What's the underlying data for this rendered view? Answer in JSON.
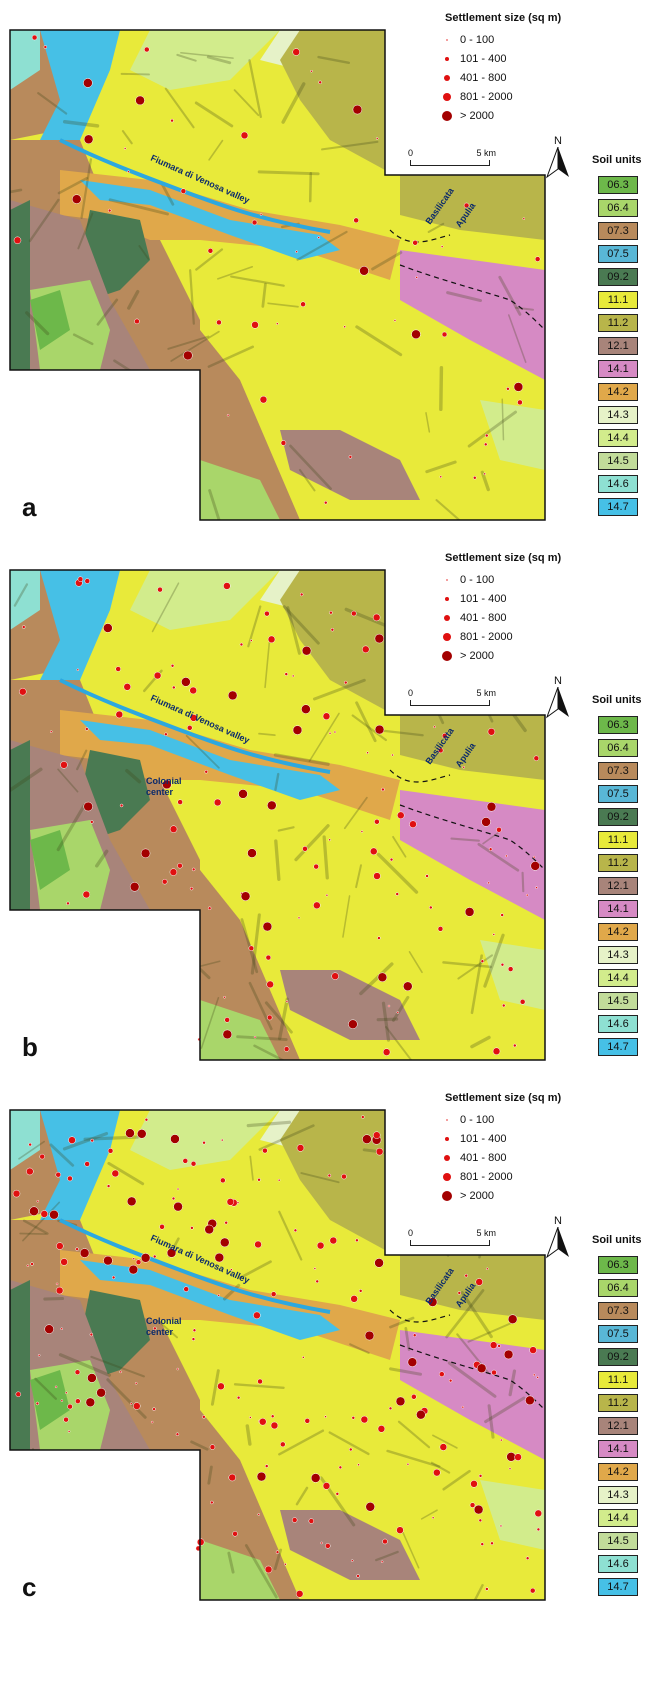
{
  "legend": {
    "title": "Settlement size (sq m)",
    "classes": [
      "0 - 100",
      "101 - 400",
      "401 - 800",
      "801 - 2000",
      "> 2000"
    ]
  },
  "scale": {
    "start": "0",
    "end": "5 km"
  },
  "north_label": "N",
  "soil_units": {
    "title": "Soil units",
    "units": [
      {
        "code": "06.3",
        "color": "#6db84a"
      },
      {
        "code": "06.4",
        "color": "#a9d66a"
      },
      {
        "code": "07.3",
        "color": "#b88a5c"
      },
      {
        "code": "07.5",
        "color": "#59b7d6"
      },
      {
        "code": "09.2",
        "color": "#4a7a52"
      },
      {
        "code": "11.1",
        "color": "#e8ea3a"
      },
      {
        "code": "11.2",
        "color": "#b8b54a"
      },
      {
        "code": "12.1",
        "color": "#a8847a"
      },
      {
        "code": "14.1",
        "color": "#d68ac4"
      },
      {
        "code": "14.2",
        "color": "#e0a84a"
      },
      {
        "code": "14.3",
        "color": "#e6f2c8"
      },
      {
        "code": "14.4",
        "color": "#d2ec8c"
      },
      {
        "code": "14.5",
        "color": "#c2dc9a"
      },
      {
        "code": "14.6",
        "color": "#8ee0d2"
      },
      {
        "code": "14.7",
        "color": "#46c0e6"
      }
    ]
  },
  "map_labels": {
    "river": "Fiumara di Venosa valley",
    "basilicata": "Basilicata",
    "apulia": "Apulia",
    "colonial": [
      "Colonial",
      "center"
    ]
  },
  "panels": [
    {
      "label": "a",
      "show_colonial": false
    },
    {
      "label": "b",
      "show_colonial": true
    },
    {
      "label": "c",
      "show_colonial": true
    }
  ]
}
